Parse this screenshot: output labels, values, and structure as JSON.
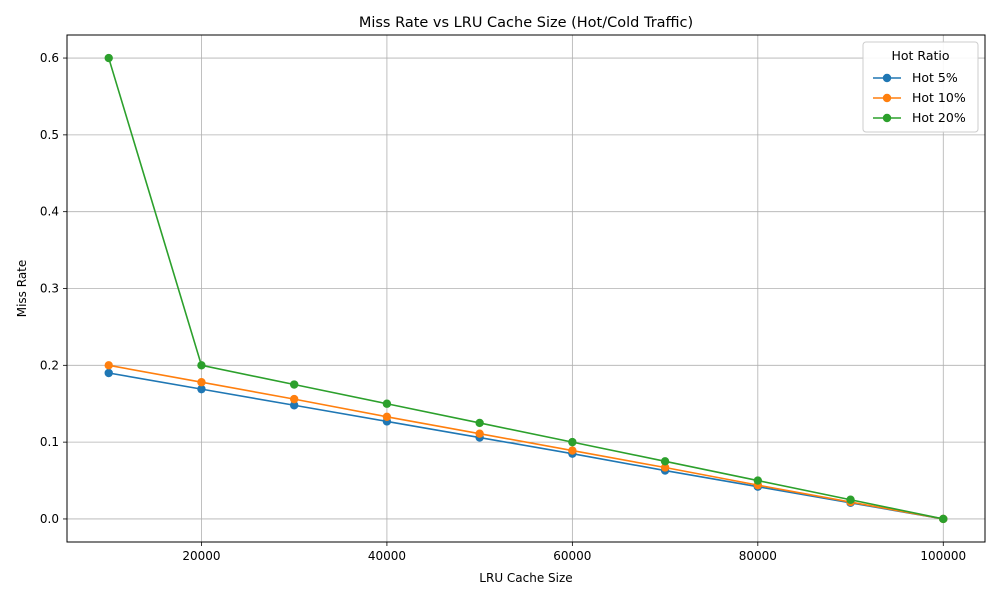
{
  "chart_data": {
    "type": "line",
    "title": "Miss Rate vs LRU Cache Size (Hot/Cold Traffic)",
    "xlabel": "LRU Cache Size",
    "ylabel": "Miss Rate",
    "xlim": [
      5500,
      104500
    ],
    "ylim": [
      -0.03,
      0.63
    ],
    "xticks": [
      20000,
      40000,
      60000,
      80000,
      100000
    ],
    "yticks": [
      0.0,
      0.1,
      0.2,
      0.3,
      0.4,
      0.5,
      0.6
    ],
    "grid": true,
    "legend": {
      "title": "Hot Ratio",
      "placement": "top-right"
    },
    "x": [
      10000,
      20000,
      30000,
      40000,
      50000,
      60000,
      70000,
      80000,
      90000,
      100000
    ],
    "series": [
      {
        "name": "Hot 5%",
        "color": "#1f77b4",
        "values": [
          0.19,
          0.169,
          0.148,
          0.127,
          0.106,
          0.085,
          0.063,
          0.042,
          0.021,
          0.0
        ]
      },
      {
        "name": "Hot 10%",
        "color": "#ff7f0e",
        "values": [
          0.2,
          0.178,
          0.156,
          0.133,
          0.111,
          0.089,
          0.067,
          0.044,
          0.022,
          0.0
        ]
      },
      {
        "name": "Hot 20%",
        "color": "#2ca02c",
        "values": [
          0.6,
          0.2,
          0.175,
          0.15,
          0.125,
          0.1,
          0.075,
          0.05,
          0.025,
          0.0
        ]
      }
    ]
  }
}
